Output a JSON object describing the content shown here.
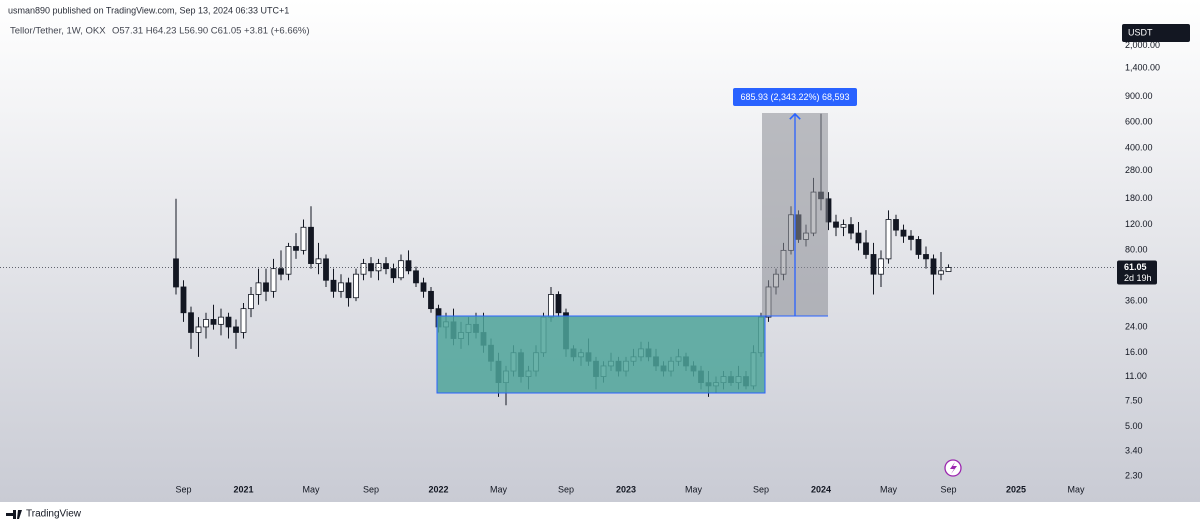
{
  "header": {
    "publisher": "usman890 published on TradingView.com, Sep 13, 2024 06:33 UTC+1",
    "brand": "TradingView"
  },
  "chart_data": {
    "type": "candlestick",
    "title": "Tellor/Tether, 1W, OKX",
    "subtitle": "O57.31 H64.23 L56.90 C61.05 +3.81 (+6.66%)",
    "currency": "USDT",
    "countdown": "2d 19h",
    "annotation": "685.93 (2,343.22%) 68,593",
    "log_scale": true,
    "grid": false,
    "up_color": "#ffffff",
    "down_color": "#131722",
    "outline_color": "#131722",
    "categories": [
      "",
      "Sep",
      null,
      null,
      null,
      null,
      null,
      null,
      null,
      "2021",
      null,
      null,
      null,
      null,
      null,
      null,
      null,
      null,
      "May",
      null,
      null,
      null,
      null,
      null,
      null,
      null,
      "Sep",
      null,
      null,
      null,
      null,
      null,
      null,
      null,
      null,
      "2022",
      null,
      null,
      null,
      null,
      null,
      null,
      null,
      "May",
      null,
      null,
      null,
      null,
      null,
      null,
      null,
      null,
      "Sep",
      null,
      null,
      null,
      null,
      null,
      null,
      null,
      "2023",
      null,
      null,
      null,
      null,
      null,
      null,
      null,
      null,
      "May",
      null,
      null,
      null,
      null,
      null,
      null,
      null,
      null,
      "Sep",
      null,
      null,
      null,
      null,
      null,
      null,
      null,
      "2024",
      null,
      null,
      null,
      null,
      null,
      null,
      null,
      null,
      "May",
      null,
      null,
      null,
      null,
      null,
      null,
      null,
      "Sep",
      null,
      null,
      null,
      null,
      null,
      null,
      null,
      null,
      "2025",
      null,
      null,
      null,
      null,
      null,
      null,
      null,
      "May",
      null
    ],
    "open": [
      70,
      45,
      30,
      22,
      24,
      27,
      25,
      28,
      24,
      22,
      32,
      40,
      48,
      42,
      60,
      55,
      85,
      80,
      115,
      65,
      70,
      50,
      42,
      48,
      38,
      55,
      65,
      58,
      65,
      60,
      52,
      68,
      58,
      48,
      42,
      32,
      24,
      26,
      20,
      22,
      25,
      22,
      18,
      14,
      10,
      12,
      16,
      11,
      12,
      16,
      28,
      40,
      30,
      17,
      15,
      16,
      14,
      11,
      13,
      14,
      12,
      14,
      15,
      17,
      15,
      13,
      12,
      14,
      15,
      13,
      12,
      10,
      9.5,
      10,
      11,
      10,
      11,
      9.5,
      16,
      28,
      45,
      55,
      80,
      140,
      95,
      105,
      200,
      180,
      125,
      115,
      120,
      105,
      90,
      75,
      55,
      70,
      130,
      110,
      100,
      95,
      75,
      70,
      55,
      57.31,
      null,
      null,
      null,
      null,
      null,
      null,
      null,
      null,
      null,
      null,
      null,
      null,
      null,
      null,
      null,
      null,
      null,
      null
    ],
    "high": [
      180,
      50,
      33,
      28,
      30,
      34,
      32,
      30,
      27,
      35,
      45,
      60,
      60,
      70,
      80,
      90,
      105,
      130,
      160,
      90,
      75,
      60,
      55,
      52,
      60,
      70,
      72,
      70,
      72,
      65,
      75,
      80,
      62,
      52,
      45,
      34,
      30,
      32,
      26,
      28,
      30,
      30,
      20,
      16,
      13,
      18,
      17,
      13,
      18,
      30,
      45,
      42,
      32,
      18,
      17,
      20,
      15,
      14,
      16,
      15,
      15,
      17,
      19,
      19,
      17,
      14,
      15,
      17,
      16,
      14,
      13,
      12,
      11,
      12,
      12,
      13,
      12,
      18,
      30,
      50,
      60,
      90,
      160,
      150,
      120,
      250,
      686,
      200,
      140,
      130,
      135,
      125,
      110,
      90,
      80,
      150,
      140,
      120,
      110,
      100,
      85,
      75,
      78,
      64.23,
      null,
      null,
      null,
      null,
      null,
      null,
      null,
      null,
      null,
      null,
      null,
      null,
      null,
      null,
      null,
      null,
      null,
      null
    ],
    "low": [
      40,
      26,
      17,
      15,
      20,
      23,
      21,
      20,
      17,
      20,
      28,
      34,
      36,
      38,
      50,
      50,
      70,
      75,
      60,
      55,
      45,
      38,
      38,
      33,
      36,
      50,
      52,
      50,
      55,
      48,
      50,
      55,
      45,
      38,
      30,
      22,
      20,
      18,
      17,
      18,
      20,
      16,
      12,
      8,
      7,
      11,
      10,
      9,
      11,
      15,
      26,
      28,
      15,
      14,
      13,
      13,
      9,
      10,
      12,
      11,
      11,
      13,
      14,
      14,
      12,
      11,
      11,
      13,
      12,
      11,
      9,
      8,
      8.5,
      9,
      9.5,
      9,
      9,
      9,
      15,
      26,
      40,
      50,
      75,
      90,
      85,
      100,
      150,
      110,
      100,
      100,
      95,
      80,
      70,
      40,
      45,
      65,
      100,
      90,
      80,
      70,
      60,
      40,
      50,
      56.9,
      null,
      null,
      null,
      null,
      null,
      null,
      null,
      null,
      null,
      null,
      null,
      null,
      null,
      null,
      null,
      null,
      null,
      null
    ],
    "close": [
      45,
      30,
      22,
      24,
      27,
      25,
      28,
      24,
      22,
      32,
      40,
      48,
      42,
      60,
      55,
      85,
      80,
      115,
      65,
      70,
      50,
      42,
      48,
      38,
      55,
      65,
      58,
      65,
      60,
      52,
      68,
      58,
      48,
      42,
      32,
      24,
      26,
      20,
      22,
      25,
      22,
      18,
      14,
      10,
      12,
      16,
      11,
      12,
      16,
      28,
      40,
      30,
      17,
      15,
      16,
      14,
      11,
      13,
      14,
      12,
      14,
      15,
      17,
      15,
      13,
      12,
      14,
      15,
      13,
      12,
      10,
      9.5,
      10,
      11,
      10,
      11,
      9.5,
      16,
      28,
      45,
      55,
      80,
      140,
      95,
      105,
      200,
      180,
      125,
      115,
      120,
      105,
      90,
      75,
      55,
      70,
      130,
      110,
      100,
      95,
      75,
      70,
      55,
      58,
      61.05,
      null,
      null,
      null,
      null,
      null,
      null,
      null,
      null,
      null,
      null,
      null,
      null,
      null,
      null,
      null,
      null,
      null,
      null
    ],
    "ylim": [
      1.63,
      2900
    ],
    "yticks": [
      {
        "value": 2000,
        "label": "2,000.00"
      },
      {
        "value": 1400,
        "label": "1,400.00"
      },
      {
        "value": 900,
        "label": "900.00"
      },
      {
        "value": 600,
        "label": "600.00"
      },
      {
        "value": 400,
        "label": "400.00"
      },
      {
        "value": 280,
        "label": "280.00"
      },
      {
        "value": 180,
        "label": "180.00"
      },
      {
        "value": 120,
        "label": "120.00"
      },
      {
        "value": 80,
        "label": "80.00"
      },
      {
        "value": 36,
        "label": "36.00"
      },
      {
        "value": 24,
        "label": "24.00"
      },
      {
        "value": 16,
        "label": "16.00"
      },
      {
        "value": 11,
        "label": "11.00"
      },
      {
        "value": 7.5,
        "label": "7.50"
      },
      {
        "value": 5,
        "label": "5.00"
      },
      {
        "value": 3.4,
        "label": "3.40"
      },
      {
        "value": 2.3,
        "label": "2.30"
      }
    ]
  }
}
